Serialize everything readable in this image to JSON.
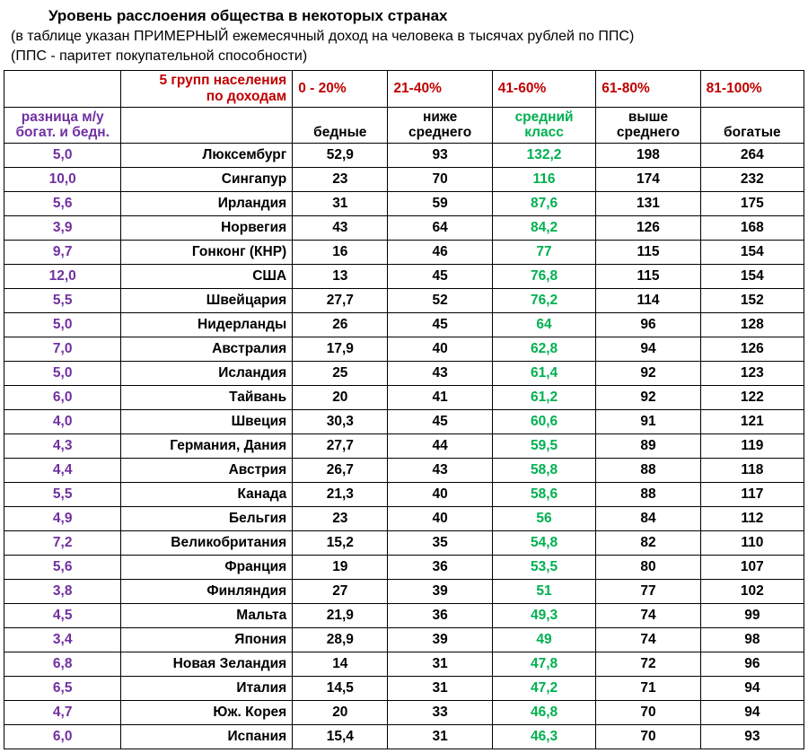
{
  "title": "Уровень расслоения общества в некоторых странах",
  "subtitle1": "(в таблице указан ПРИМЕРНЫЙ ежемесячный доход на человека в тысячах рублей по ППС)",
  "subtitle2": "(ППС - паритет покупательной способности)",
  "colors": {
    "title": "#000000",
    "purple": "#7030a0",
    "red": "#c00000",
    "green": "#00b050",
    "border": "#000000",
    "background": "#ffffff"
  },
  "header": {
    "group_label_line1": "5 групп населения",
    "group_label_line2": "по доходам",
    "ranges": [
      "0 - 20%",
      "21-40%",
      "41-60%",
      "61-80%",
      "81-100%"
    ],
    "diff_label_line1": "разница м/у",
    "diff_label_line2": "богат. и бедн.",
    "desc": {
      "c2": "бедные",
      "c3_line1": "ниже",
      "c3_line2": "среднего",
      "c4_line1": "средний",
      "c4_line2": "класс",
      "c5_line1": "выше",
      "c5_line2": "среднего",
      "c6": "богатые"
    }
  },
  "rows": [
    {
      "ratio": "5,0",
      "country": "Люксембург",
      "v": [
        "52,9",
        "93",
        "132,2",
        "198",
        "264"
      ]
    },
    {
      "ratio": "10,0",
      "country": "Сингапур",
      "v": [
        "23",
        "70",
        "116",
        "174",
        "232"
      ]
    },
    {
      "ratio": "5,6",
      "country": "Ирландия",
      "v": [
        "31",
        "59",
        "87,6",
        "131",
        "175"
      ]
    },
    {
      "ratio": "3,9",
      "country": "Норвегия",
      "v": [
        "43",
        "64",
        "84,2",
        "126",
        "168"
      ]
    },
    {
      "ratio": "9,7",
      "country": "Гонконг (КНР)",
      "v": [
        "16",
        "46",
        "77",
        "115",
        "154"
      ]
    },
    {
      "ratio": "12,0",
      "country": "США",
      "v": [
        "13",
        "45",
        "76,8",
        "115",
        "154"
      ]
    },
    {
      "ratio": "5,5",
      "country": "Швейцария",
      "v": [
        "27,7",
        "52",
        "76,2",
        "114",
        "152"
      ]
    },
    {
      "ratio": "5,0",
      "country": "Нидерланды",
      "v": [
        "26",
        "45",
        "64",
        "96",
        "128"
      ]
    },
    {
      "ratio": "7,0",
      "country": "Австралия",
      "v": [
        "17,9",
        "40",
        "62,8",
        "94",
        "126"
      ]
    },
    {
      "ratio": "5,0",
      "country": "Исландия",
      "v": [
        "25",
        "43",
        "61,4",
        "92",
        "123"
      ]
    },
    {
      "ratio": "6,0",
      "country": "Тайвань",
      "v": [
        "20",
        "41",
        "61,2",
        "92",
        "122"
      ]
    },
    {
      "ratio": "4,0",
      "country": "Швеция",
      "v": [
        "30,3",
        "45",
        "60,6",
        "91",
        "121"
      ]
    },
    {
      "ratio": "4,3",
      "country": "Германия, Дания",
      "v": [
        "27,7",
        "44",
        "59,5",
        "89",
        "119"
      ]
    },
    {
      "ratio": "4,4",
      "country": "Австрия",
      "v": [
        "26,7",
        "43",
        "58,8",
        "88",
        "118"
      ]
    },
    {
      "ratio": "5,5",
      "country": "Канада",
      "v": [
        "21,3",
        "40",
        "58,6",
        "88",
        "117"
      ]
    },
    {
      "ratio": "4,9",
      "country": "Бельгия",
      "v": [
        "23",
        "40",
        "56",
        "84",
        "112"
      ]
    },
    {
      "ratio": "7,2",
      "country": "Великобритания",
      "v": [
        "15,2",
        "35",
        "54,8",
        "82",
        "110"
      ]
    },
    {
      "ratio": "5,6",
      "country": "Франция",
      "v": [
        "19",
        "36",
        "53,5",
        "80",
        "107"
      ]
    },
    {
      "ratio": "3,8",
      "country": "Финляндия",
      "v": [
        "27",
        "39",
        "51",
        "77",
        "102"
      ]
    },
    {
      "ratio": "4,5",
      "country": "Мальта",
      "v": [
        "21,9",
        "36",
        "49,3",
        "74",
        "99"
      ]
    },
    {
      "ratio": "3,4",
      "country": "Япония",
      "v": [
        "28,9",
        "39",
        "49",
        "74",
        "98"
      ]
    },
    {
      "ratio": "6,8",
      "country": "Новая Зеландия",
      "v": [
        "14",
        "31",
        "47,8",
        "72",
        "96"
      ]
    },
    {
      "ratio": "6,5",
      "country": "Италия",
      "v": [
        "14,5",
        "31",
        "47,2",
        "71",
        "94"
      ]
    },
    {
      "ratio": "4,7",
      "country": "Юж. Корея",
      "v": [
        "20",
        "33",
        "46,8",
        "70",
        "94"
      ]
    },
    {
      "ratio": "6,0",
      "country": "Испания",
      "v": [
        "15,4",
        "31",
        "46,3",
        "70",
        "93"
      ]
    }
  ]
}
